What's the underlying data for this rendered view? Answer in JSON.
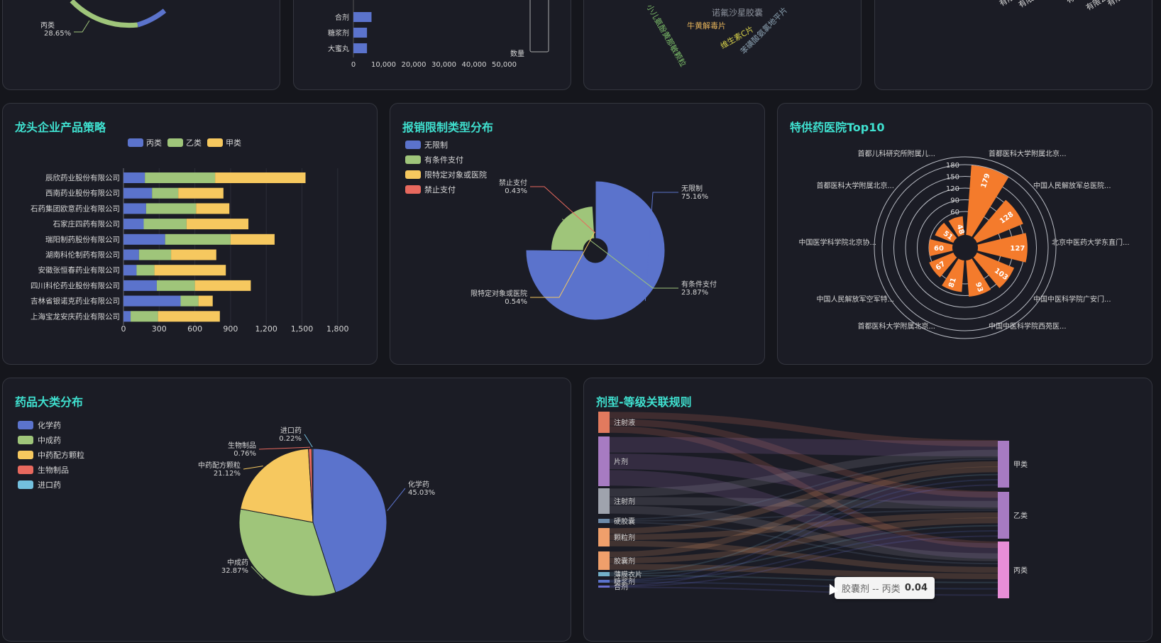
{
  "top_row": {
    "pie_label": {
      "name": "丙类",
      "pct": "28.65%"
    },
    "bar_categories": [
      "合剂",
      "糖浆剂",
      "大蜜丸"
    ],
    "bar_values": [
      6000,
      4500,
      4500
    ],
    "bar_ticks": [
      "0",
      "10,000",
      "20,000",
      "30,000",
      "40,000",
      "50,000"
    ],
    "bar_legend": "数量",
    "wordcloud": [
      "诺氟沙星胶囊",
      "牛黄解毒片",
      "维生素C片",
      "小儿氨酚黄那敏颗粒",
      "苯磺酸氨氯地平片"
    ],
    "rotated_labels": [
      "有限公司",
      "有限公司",
      "有限公司",
      "有限公司",
      "有限公司",
      "有限公司",
      "有限公司",
      "有限公司"
    ]
  },
  "enterprise": {
    "title": "龙头企业产品策略",
    "legend": [
      "丙类",
      "乙类",
      "甲类"
    ],
    "colors": [
      "#5b73cc",
      "#9fc57a",
      "#f6c85f"
    ]
  },
  "reimburse": {
    "title": "报销限制类型分布",
    "legend": [
      "无限制",
      "有条件支付",
      "限特定对象或医院",
      "禁止支付"
    ],
    "colors": [
      "#5b73cc",
      "#9fc57a",
      "#f6c85f",
      "#e8695e"
    ],
    "labels": [
      {
        "name": "无限制",
        "pct": "75.16%"
      },
      {
        "name": "有条件支付",
        "pct": "23.87%"
      },
      {
        "name": "限特定对象或医院",
        "pct": "0.54%"
      },
      {
        "name": "禁止支付",
        "pct": "0.43%"
      }
    ]
  },
  "hospital": {
    "title": "特供药医院Top10",
    "radial_ticks": [
      "180",
      "150",
      "120",
      "90",
      "60"
    ],
    "labels": [
      "首都儿科研究所附属儿...",
      "首都医科大学附属北京...",
      "首都医科大学附属北京...",
      "中国人民解放军总医院...",
      "中国医学科学院北京协...",
      "北京中医药大学东直门...",
      "中国人民解放军空军特...",
      "中国中医科学院广安门...",
      "首都医科大学附属北京...",
      "中国中医科学院西苑医..."
    ],
    "value_labels": [
      "179",
      "128",
      "127",
      "103",
      "93",
      "81",
      "67",
      "60",
      "51",
      "48"
    ],
    "color": "#f47b2c"
  },
  "categories": {
    "title": "药品大类分布",
    "legend": [
      "化学药",
      "中成药",
      "中药配方颗粒",
      "生物制品",
      "进口药"
    ],
    "colors": [
      "#5b73cc",
      "#9fc57a",
      "#f6c85f",
      "#e8695e",
      "#73c0de"
    ],
    "labels": [
      {
        "name": "化学药",
        "pct": "45.03%"
      },
      {
        "name": "中成药",
        "pct": "32.87%"
      },
      {
        "name": "中药配方颗粒",
        "pct": "21.12%"
      },
      {
        "name": "生物制品",
        "pct": "0.76%"
      },
      {
        "name": "进口药",
        "pct": "0.22%"
      }
    ]
  },
  "sankey": {
    "title": "剂型-等级关联规则",
    "sources": [
      "注射液",
      "片剂",
      "注射剂",
      "硬胶囊",
      "颗粒剂",
      "胶囊剂",
      "薄膜衣片",
      "糖浆剂",
      "合剂"
    ],
    "targets": [
      "甲类",
      "乙类",
      "丙类"
    ],
    "source_colors": [
      "#e27a5e",
      "#a77bc2",
      "#9fa3ad",
      "#6d8aa8",
      "#ef9f6b",
      "#ef9f6b",
      "#73b0c8",
      "#5b73cc",
      "#6a6ed0"
    ],
    "target_colors": [
      "#a77bc2",
      "#a77bc2",
      "#e88ed7"
    ],
    "tooltip": {
      "label": "胶囊剂 -- 丙类",
      "value": "0.04"
    }
  },
  "chart_data": [
    {
      "type": "bar",
      "title": "龙头企业产品策略",
      "orientation": "horizontal",
      "stacked": true,
      "categories": [
        "辰欣药业股份有限公司",
        "西南药业股份有限公司",
        "石药集团欧意药业有限公司",
        "石家庄四药有限公司",
        "瑞阳制药股份有限公司",
        "湖南科伦制药有限公司",
        "安徽张恒春药业有限公司",
        "四川科伦药业股份有限公司",
        "吉林省银诺克药业有限公司",
        "上海宝龙安庆药业有限公司"
      ],
      "series": [
        {
          "name": "丙类",
          "values": [
            180,
            240,
            190,
            170,
            350,
            130,
            110,
            280,
            480,
            60
          ]
        },
        {
          "name": "乙类",
          "values": [
            590,
            220,
            420,
            360,
            550,
            270,
            150,
            320,
            150,
            230
          ]
        },
        {
          "name": "甲类",
          "values": [
            760,
            380,
            280,
            520,
            370,
            380,
            600,
            470,
            120,
            520
          ]
        }
      ],
      "ticks": [
        "0",
        "300",
        "600",
        "900",
        "1,200",
        "1,500",
        "1,800"
      ],
      "xlim": [
        0,
        1800
      ]
    },
    {
      "type": "pie",
      "title": "报销限制类型分布",
      "rose": true,
      "categories": [
        "无限制",
        "有条件支付",
        "限特定对象或医院",
        "禁止支付"
      ],
      "values": [
        75.16,
        23.87,
        0.54,
        0.43
      ]
    },
    {
      "type": "bar",
      "title": "特供药医院Top10",
      "polar": true,
      "categories": [
        "首都医科大学附属北京...",
        "中国人民解放军总医院...",
        "北京中医药大学东直门...",
        "中国中医科学院广安门...",
        "中国中医科学院西苑医...",
        "首都医科大学附属北京...",
        "中国人民解放军空军特...",
        "中国医学科学院北京协...",
        "首都医科大学附属北京...",
        "首都儿科研究所附属儿..."
      ],
      "values": [
        179,
        128,
        127,
        103,
        93,
        81,
        67,
        60,
        51,
        48
      ],
      "ylim": [
        0,
        180
      ]
    },
    {
      "type": "pie",
      "title": "药品大类分布",
      "categories": [
        "化学药",
        "中成药",
        "中药配方颗粒",
        "生物制品",
        "进口药"
      ],
      "values": [
        45.03,
        32.87,
        21.12,
        0.76,
        0.22
      ]
    }
  ]
}
